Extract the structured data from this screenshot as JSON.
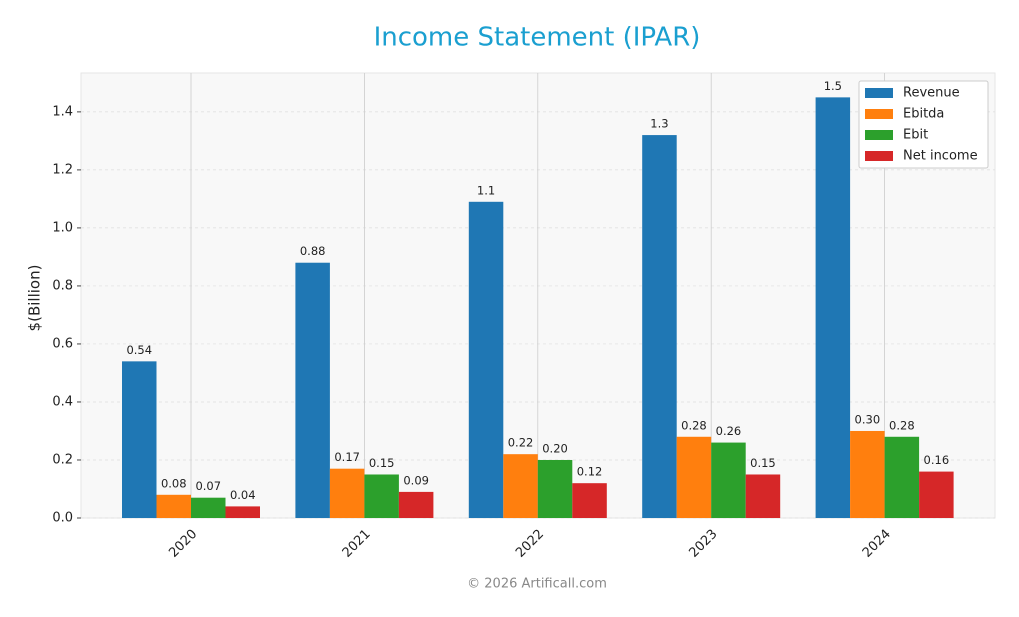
{
  "chart_data": {
    "type": "bar",
    "title": "Income Statement (IPAR)",
    "y_label": "$(Billion)",
    "footer": "© 2026 Artificall.com",
    "categories": [
      "2020",
      "2021",
      "2022",
      "2023",
      "2024"
    ],
    "series": [
      {
        "name": "Revenue",
        "color": "#1f77b4",
        "values": [
          0.54,
          0.88,
          1.09,
          1.32,
          1.45
        ],
        "value_labels": [
          "0.54",
          "0.88",
          "1.1",
          "1.3",
          "1.5"
        ]
      },
      {
        "name": "Ebitda",
        "color": "#ff7f0e",
        "values": [
          0.08,
          0.17,
          0.22,
          0.28,
          0.3
        ],
        "value_labels": [
          "0.08",
          "0.17",
          "0.22",
          "0.28",
          "0.30"
        ]
      },
      {
        "name": "Ebit",
        "color": "#2ca02c",
        "values": [
          0.07,
          0.15,
          0.2,
          0.26,
          0.28
        ],
        "value_labels": [
          "0.07",
          "0.15",
          "0.20",
          "0.26",
          "0.28"
        ]
      },
      {
        "name": "Net income",
        "color": "#d62728",
        "values": [
          0.04,
          0.09,
          0.12,
          0.15,
          0.16
        ],
        "value_labels": [
          "0.04",
          "0.09",
          "0.12",
          "0.15",
          "0.16"
        ]
      }
    ],
    "ylim": [
      0,
      1.534
    ],
    "yticks": [
      {
        "value": 0,
        "label": "0.0"
      },
      0.2,
      0.4,
      0.6,
      0.8,
      {
        "value": 1,
        "label": "1.0"
      },
      1.2,
      1.4
    ],
    "grid": true,
    "legend": "upper right"
  }
}
